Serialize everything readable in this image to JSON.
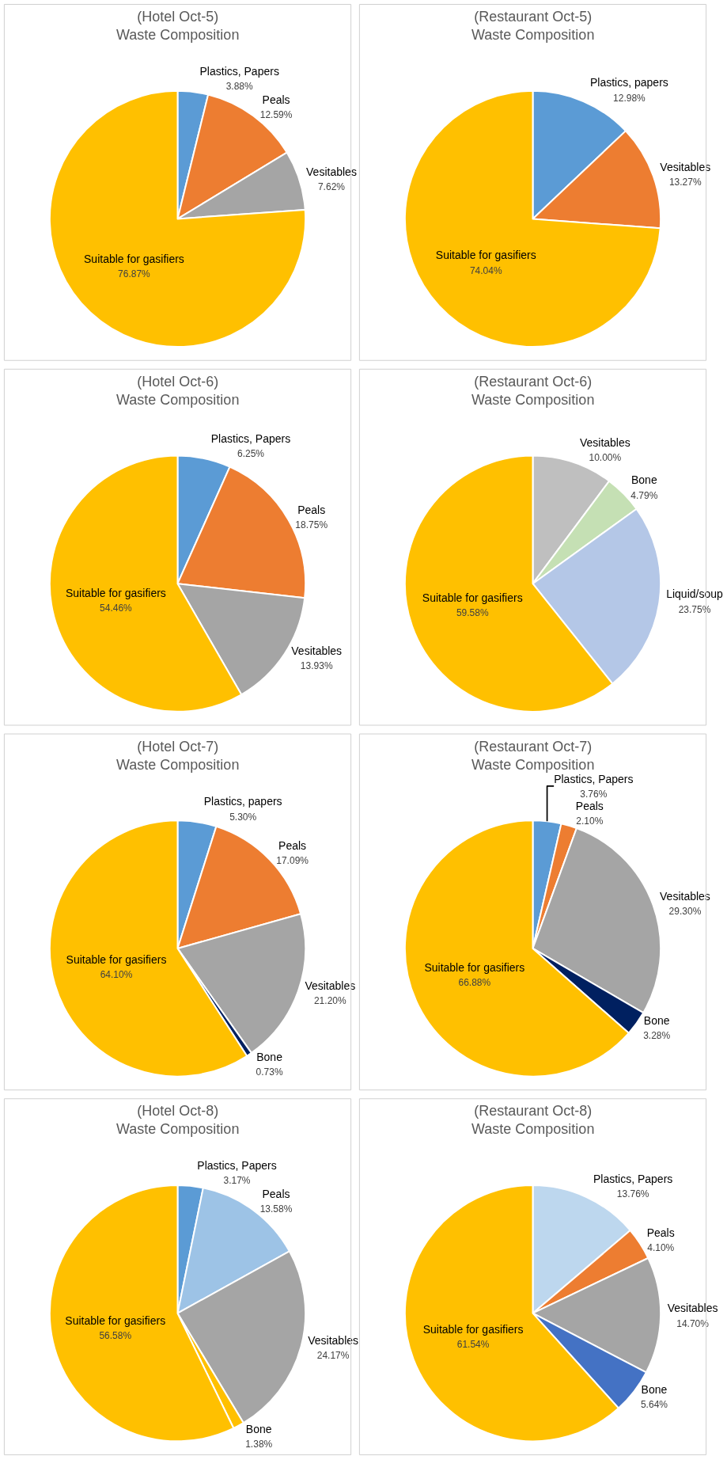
{
  "chart_data": [
    {
      "type": "pie",
      "title": "(Hotel Oct-5)",
      "subtitle": "Waste Composition",
      "categories": [
        "Plastics, Papers",
        "Peals",
        "Vesitables",
        "Suitable for gasifiers"
      ],
      "values": [
        3.88,
        12.59,
        7.62,
        76.87
      ],
      "value_labels": [
        "3.88%",
        "12.59%",
        "7.62%",
        "76.87%"
      ],
      "colors": [
        "#5b9bd5",
        "#ed7d31",
        "#a5a5a5",
        "#ffc000"
      ]
    },
    {
      "type": "pie",
      "title": "(Restaurant Oct-5)",
      "subtitle": "Waste Composition",
      "categories": [
        "Plastics, papers",
        "Vesitables",
        "Suitable for gasifiers"
      ],
      "values": [
        12.98,
        13.27,
        74.04
      ],
      "value_labels": [
        "12.98%",
        "13.27%",
        "74.04%"
      ],
      "colors": [
        "#5b9bd5",
        "#ed7d31",
        "#ffc000"
      ]
    },
    {
      "type": "pie",
      "title": "(Hotel Oct-6)",
      "subtitle": "Waste Composition",
      "categories": [
        "Plastics, Papers",
        "Peals",
        "Vesitables",
        "Suitable for gasifiers"
      ],
      "values": [
        6.25,
        18.75,
        13.93,
        54.46
      ],
      "value_labels": [
        "6.25%",
        "18.75%",
        "13.93%",
        "54.46%"
      ],
      "colors": [
        "#5b9bd5",
        "#ed7d31",
        "#a5a5a5",
        "#ffc000"
      ]
    },
    {
      "type": "pie",
      "title": "(Restaurant Oct-6)",
      "subtitle": "Waste Composition",
      "categories": [
        "Vesitables",
        "Bone",
        "Liquid/soup",
        "Suitable for gasifiers"
      ],
      "values": [
        10.0,
        4.79,
        23.75,
        59.58
      ],
      "value_labels": [
        "10.00%",
        "4.79%",
        "23.75%",
        "59.58%"
      ],
      "colors": [
        "#bfbfbf",
        "#c5e0b4",
        "#b4c7e7",
        "#ffc000"
      ]
    },
    {
      "type": "pie",
      "title": "(Hotel Oct-7)",
      "subtitle": "Waste Composition",
      "categories": [
        "Plastics, papers",
        "Peals",
        "Vesitables",
        "Bone",
        "Suitable for gasifiers"
      ],
      "values": [
        5.3,
        17.09,
        21.2,
        0.73,
        64.1
      ],
      "value_labels": [
        "5.30%",
        "17.09%",
        "21.20%",
        "0.73%",
        "64.10%"
      ],
      "colors": [
        "#5b9bd5",
        "#ed7d31",
        "#a5a5a5",
        "#002060",
        "#ffc000"
      ]
    },
    {
      "type": "pie",
      "title": "(Restaurant Oct-7)",
      "subtitle": "Waste Composition",
      "categories": [
        "Plastics, Papers",
        "Peals",
        "Vesitables",
        "Bone",
        "Suitable for gasifiers"
      ],
      "values": [
        3.76,
        2.1,
        29.3,
        3.28,
        66.88
      ],
      "value_labels": [
        "3.76%",
        "2.10%",
        "29.30%",
        "3.28%",
        "66.88%"
      ],
      "colors": [
        "#5b9bd5",
        "#ed7d31",
        "#a5a5a5",
        "#002060",
        "#ffc000"
      ]
    },
    {
      "type": "pie",
      "title": "(Hotel Oct-8)",
      "subtitle": "Waste Composition",
      "categories": [
        "Plastics, Papers",
        "Peals",
        "Vesitables",
        "Bone",
        "Suitable for gasifiers"
      ],
      "values": [
        3.17,
        13.58,
        24.17,
        1.38,
        56.58
      ],
      "value_labels": [
        "3.17%",
        "13.58%",
        "24.17%",
        "1.38%",
        "56.58%"
      ],
      "colors": [
        "#5b9bd5",
        "#9dc3e6",
        "#a5a5a5",
        "#ffc000",
        "#ffc000"
      ]
    },
    {
      "type": "pie",
      "title": "(Restaurant Oct-8)",
      "subtitle": "Waste Composition",
      "categories": [
        "Plastics, Papers",
        "Peals",
        "Vesitables",
        "Bone",
        "Suitable for gasifiers"
      ],
      "values": [
        13.76,
        4.1,
        14.7,
        5.64,
        61.54
      ],
      "value_labels": [
        "13.76%",
        "4.10%",
        "14.70%",
        "5.64%",
        "61.54%"
      ],
      "colors": [
        "#bdd7ee",
        "#ed7d31",
        "#a5a5a5",
        "#4472c4",
        "#ffc000"
      ]
    }
  ]
}
